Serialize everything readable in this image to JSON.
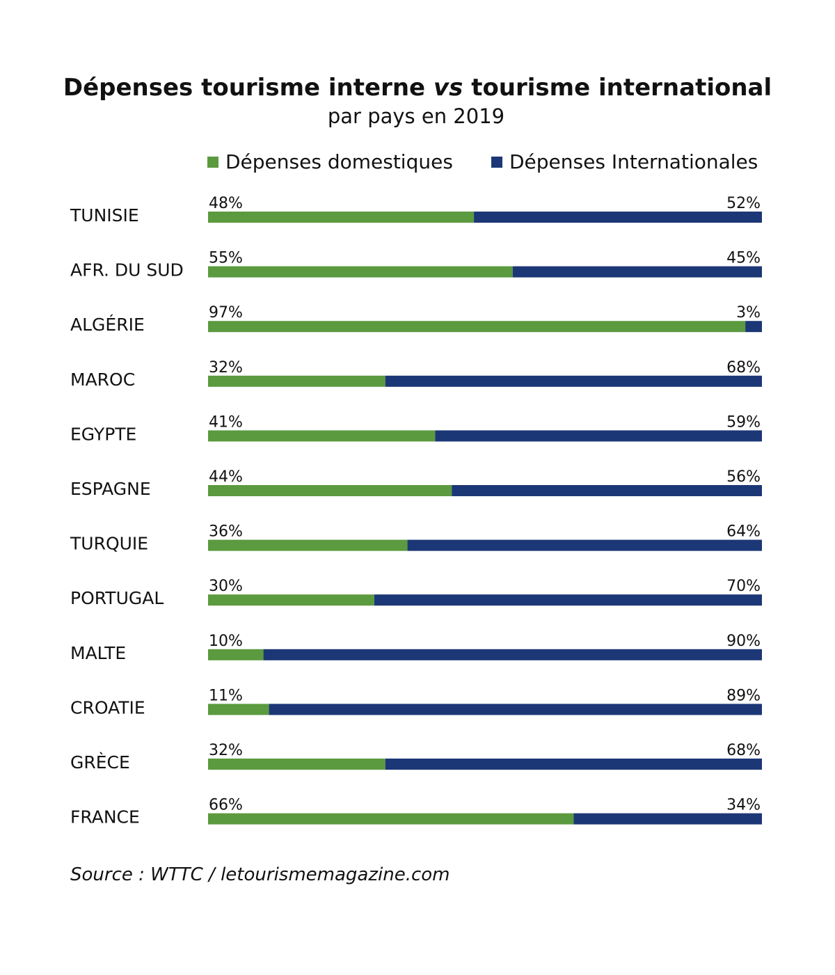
{
  "title_main_1": "Dépenses tourisme interne ",
  "title_vs": "vs",
  "title_main_2": " tourisme international",
  "subtitle": "par pays en 2019",
  "source": "Source : WTTC / letourismemagazine.com",
  "colors": {
    "domestic": "#5b9a3f",
    "international": "#1c3776"
  },
  "chart_data": {
    "type": "bar",
    "stacked": true,
    "orientation": "horizontal",
    "unit": "%",
    "xlim": [
      0,
      100
    ],
    "grid": false,
    "legend_placement": "top",
    "categories": [
      "TUNISIE",
      "AFR. DU SUD",
      "ALGÉRIE",
      "MAROC",
      "EGYPTE",
      "ESPAGNE",
      "TURQUIE",
      "PORTUGAL",
      "MALTE",
      "CROATIE",
      "GRÈCE",
      "FRANCE"
    ],
    "series": [
      {
        "name": "Dépenses domestiques",
        "values": [
          48,
          55,
          97,
          32,
          41,
          44,
          36,
          30,
          10,
          11,
          32,
          66
        ]
      },
      {
        "name": "Dépenses Internationales",
        "values": [
          52,
          45,
          3,
          68,
          59,
          56,
          64,
          70,
          90,
          89,
          68,
          34
        ]
      }
    ]
  }
}
